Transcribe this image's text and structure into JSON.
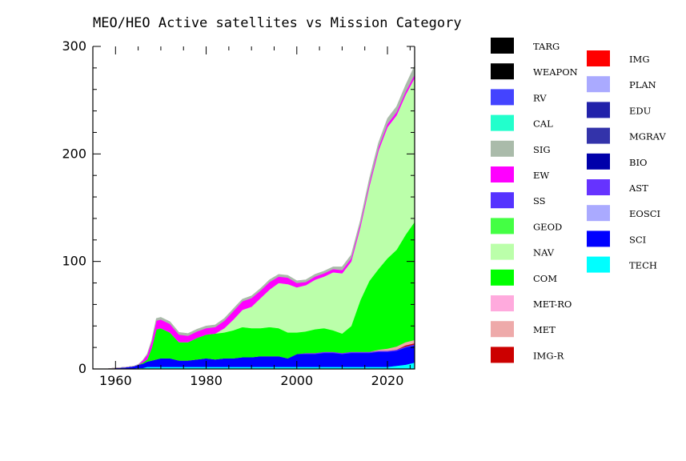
{
  "chart_data": {
    "type": "area",
    "stacked": true,
    "title": "MEO/HEO Active satellites vs Mission Category",
    "xlabel": "",
    "ylabel": "",
    "xlim": [
      1955,
      2026
    ],
    "ylim": [
      0,
      300
    ],
    "x_ticks": [
      1960,
      1980,
      2000,
      2020
    ],
    "y_ticks": [
      0,
      100,
      200,
      300
    ],
    "legend_placement": "right",
    "grid": false,
    "x": [
      1955,
      1958,
      1960,
      1962,
      1964,
      1965,
      1966,
      1967,
      1968,
      1969,
      1970,
      1972,
      1974,
      1976,
      1978,
      1980,
      1982,
      1984,
      1986,
      1988,
      1990,
      1992,
      1994,
      1996,
      1998,
      2000,
      2002,
      2004,
      2006,
      2008,
      2010,
      2012,
      2014,
      2016,
      2018,
      2020,
      2022,
      2024,
      2026
    ],
    "series": [
      {
        "name": "TECH",
        "color": "#00ffff",
        "values": [
          0,
          0,
          0,
          0.5,
          0.5,
          1,
          1,
          2,
          2,
          2,
          2,
          2,
          2,
          2,
          2,
          2,
          2,
          2,
          2,
          2,
          2,
          2,
          2,
          2,
          2,
          2,
          2,
          2,
          2,
          2,
          2,
          2,
          2,
          2,
          2,
          2,
          3,
          4,
          6
        ]
      },
      {
        "name": "SCI",
        "color": "#0000ff",
        "values": [
          0,
          0,
          1,
          1,
          2,
          3,
          4,
          5,
          6,
          7,
          8,
          8,
          6,
          6,
          7,
          8,
          7,
          8,
          8,
          9,
          9,
          10,
          10,
          10,
          8,
          12,
          12,
          12,
          13,
          13,
          12,
          13,
          13,
          13,
          14,
          14,
          14,
          16,
          16
        ]
      },
      {
        "name": "EOSCI",
        "color": "#aaaaff",
        "values": [
          0,
          0,
          0,
          0,
          0,
          0,
          0,
          0,
          0,
          0,
          0,
          0,
          0,
          0,
          0,
          0,
          0,
          0,
          0,
          0,
          0,
          0,
          0,
          0,
          0,
          0,
          0,
          0,
          0,
          0,
          0,
          0,
          0,
          0,
          0,
          0,
          0,
          0,
          0
        ]
      },
      {
        "name": "AST",
        "color": "#6633ff",
        "values": [
          0,
          0,
          0,
          0,
          0,
          0,
          0,
          0,
          0,
          0,
          0,
          0,
          0,
          0,
          0,
          0,
          0,
          0,
          0,
          0,
          0,
          0,
          0,
          0,
          0,
          0,
          1,
          1,
          1,
          1,
          1,
          1,
          1,
          1,
          1,
          1,
          1,
          1,
          1
        ]
      },
      {
        "name": "BIO",
        "color": "#0000aa",
        "values": [
          0,
          0,
          0,
          0,
          0,
          0,
          0,
          0,
          0,
          0,
          0,
          0,
          0,
          0,
          0,
          0,
          0,
          0,
          0,
          0,
          0,
          0,
          0,
          0,
          0,
          0,
          0,
          0,
          0,
          0,
          0,
          0,
          0,
          0,
          0,
          0,
          0,
          0,
          0
        ]
      },
      {
        "name": "MGRAV",
        "color": "#3333aa",
        "values": [
          0,
          0,
          0,
          0,
          0,
          0,
          0,
          0,
          0,
          0,
          0,
          0,
          0,
          0,
          0,
          0,
          0,
          0,
          0,
          0,
          0,
          0,
          0,
          0,
          0,
          0,
          0,
          0,
          0,
          0,
          0,
          0,
          0,
          0,
          0,
          0,
          0,
          0,
          0
        ]
      },
      {
        "name": "EDU",
        "color": "#2222aa",
        "values": [
          0,
          0,
          0,
          0,
          0,
          0,
          0,
          0,
          0,
          0,
          0,
          0,
          0,
          0,
          0,
          0,
          0,
          0,
          0,
          0,
          0,
          0,
          0,
          0,
          0,
          0,
          0,
          0,
          0,
          0,
          0,
          0,
          0,
          0,
          0,
          0,
          0,
          0,
          0
        ]
      },
      {
        "name": "PLAN",
        "color": "#aaaaff",
        "values": [
          0,
          0,
          0,
          0,
          0,
          0,
          0,
          0,
          0,
          0,
          0,
          0,
          0,
          0,
          0,
          0,
          0,
          0,
          0,
          0,
          0,
          0,
          0,
          0,
          0,
          0,
          0,
          0,
          0,
          0,
          0,
          0,
          0,
          0,
          0,
          0,
          0,
          0,
          0
        ]
      },
      {
        "name": "IMG",
        "color": "#ff0000",
        "values": [
          0,
          0,
          0,
          0,
          0,
          0,
          0,
          0,
          0,
          0,
          0,
          0,
          0,
          0,
          0,
          0,
          0,
          0,
          0,
          0,
          0,
          0,
          0,
          0,
          0,
          0,
          0,
          0,
          0,
          0,
          0,
          0,
          0,
          0,
          0,
          0,
          0,
          0,
          0
        ]
      },
      {
        "name": "IMG-R",
        "color": "#cc0000",
        "values": [
          0,
          0,
          0,
          0,
          0,
          0,
          0,
          0,
          0,
          0,
          0,
          0,
          0,
          0,
          0,
          0,
          0,
          0,
          0,
          0,
          0,
          0,
          0,
          0,
          0,
          0,
          0,
          0,
          0,
          0,
          0,
          0,
          0,
          0,
          0,
          0,
          0,
          1,
          1
        ]
      },
      {
        "name": "MET",
        "color": "#eeaaaa",
        "values": [
          0,
          0,
          0,
          0,
          0,
          0,
          0,
          0,
          0,
          0,
          0,
          0,
          0,
          0,
          0,
          0,
          0,
          0,
          0,
          0,
          0,
          0,
          0,
          0,
          0,
          0,
          0,
          0,
          0,
          0,
          0,
          0,
          0,
          0,
          1,
          2,
          3,
          3,
          3
        ]
      },
      {
        "name": "MET-RO",
        "color": "#ffaadd",
        "values": [
          0,
          0,
          0,
          0,
          0,
          0,
          0,
          0,
          0,
          0,
          0,
          0,
          0,
          0,
          0,
          0,
          0,
          0,
          0,
          0,
          0,
          0,
          0,
          0,
          0,
          0,
          0,
          0,
          0,
          0,
          0,
          0,
          0,
          0,
          0,
          0,
          0,
          0,
          0
        ]
      },
      {
        "name": "COM",
        "color": "#00ff00",
        "values": [
          0,
          0,
          0,
          0,
          0,
          0,
          1,
          2,
          12,
          28,
          28,
          24,
          17,
          17,
          20,
          22,
          24,
          24,
          26,
          28,
          27,
          26,
          27,
          26,
          24,
          20,
          20,
          22,
          22,
          20,
          18,
          24,
          48,
          66,
          75,
          84,
          90,
          100,
          110
        ]
      },
      {
        "name": "NAV",
        "color": "#bbffaa",
        "values": [
          0,
          0,
          0,
          0,
          0,
          0,
          0,
          0,
          0,
          0,
          0,
          0,
          0,
          0,
          0,
          0,
          0,
          4,
          10,
          16,
          20,
          28,
          35,
          42,
          45,
          42,
          43,
          46,
          48,
          54,
          56,
          60,
          68,
          88,
          110,
          122,
          125,
          130,
          134
        ]
      },
      {
        "name": "GEOD",
        "color": "#44ff44",
        "values": [
          0,
          0,
          0,
          0,
          0,
          0,
          0,
          0,
          0,
          0,
          0,
          0,
          0,
          0,
          0,
          0,
          0,
          0,
          0,
          0,
          0,
          0,
          0,
          0,
          0,
          0,
          0,
          0,
          0,
          0,
          0,
          0,
          0,
          0,
          0,
          0,
          0,
          0,
          0
        ]
      },
      {
        "name": "SS",
        "color": "#5533ff",
        "values": [
          0,
          0,
          0,
          0,
          0,
          0,
          0,
          0,
          0,
          0,
          0,
          0,
          0,
          0,
          0,
          0,
          0,
          0,
          0,
          0,
          0,
          0,
          0,
          0,
          0,
          0,
          0,
          0,
          0,
          0,
          0,
          0,
          0,
          0,
          0,
          0,
          0,
          0,
          0
        ]
      },
      {
        "name": "EW",
        "color": "#ff00ff",
        "values": [
          0,
          0,
          0,
          0,
          0,
          0,
          2,
          4,
          6,
          8,
          8,
          8,
          7,
          6,
          6,
          6,
          6,
          7,
          8,
          8,
          8,
          7,
          7,
          6,
          6,
          4,
          3,
          3,
          3,
          3,
          3,
          3,
          3,
          3,
          3,
          3,
          3,
          3,
          3
        ]
      },
      {
        "name": "SIG",
        "color": "#aabbaa",
        "values": [
          0,
          0,
          0,
          0,
          0,
          0,
          0,
          1,
          1,
          2,
          2,
          2,
          2,
          2,
          2,
          2,
          2,
          2,
          2,
          2,
          2,
          2,
          2,
          2,
          2,
          2,
          2,
          2,
          2,
          2,
          3,
          3,
          3,
          4,
          4,
          5,
          5,
          6,
          8
        ]
      },
      {
        "name": "CAL",
        "color": "#22ffcc",
        "values": [
          0,
          0,
          0,
          0,
          0,
          0,
          0,
          0,
          0,
          0,
          0,
          0,
          0,
          0,
          0,
          0,
          0,
          0,
          0,
          0,
          0,
          0,
          0,
          0,
          0,
          0,
          0,
          0,
          0,
          0,
          0,
          0,
          0,
          0,
          0,
          0,
          0,
          0,
          0
        ]
      },
      {
        "name": "RV",
        "color": "#4444ff",
        "values": [
          0,
          0,
          0,
          0,
          0,
          0,
          0,
          0,
          0,
          0,
          0,
          0,
          0,
          0,
          0,
          0,
          0,
          0,
          0,
          0,
          0,
          0,
          0,
          0,
          0,
          0,
          0,
          0,
          0,
          0,
          0,
          0,
          0,
          0,
          0,
          0,
          0,
          0,
          0
        ]
      },
      {
        "name": "WEAPON",
        "color": "#000000",
        "values": [
          0,
          0,
          0,
          0,
          0,
          0,
          0,
          0,
          0,
          0,
          0,
          0,
          0,
          0,
          0,
          0,
          0,
          0,
          0,
          0,
          0,
          0,
          0,
          0,
          0,
          0,
          0,
          0,
          0,
          0,
          0,
          0,
          0,
          0,
          0,
          0,
          0,
          0,
          0
        ]
      },
      {
        "name": "TARG",
        "color": "#000000",
        "values": [
          0,
          0,
          0,
          0,
          0,
          0,
          0,
          0,
          0,
          0,
          0,
          0,
          0,
          0,
          0,
          0,
          0,
          0,
          0,
          0,
          0,
          0,
          0,
          0,
          0,
          0,
          0,
          0,
          0,
          0,
          0,
          0,
          0,
          0,
          0,
          0,
          0,
          0,
          0
        ]
      }
    ],
    "legend_columns": [
      [
        "TARG",
        "WEAPON",
        "RV",
        "CAL",
        "SIG",
        "EW",
        "SS",
        "GEOD",
        "NAV",
        "COM",
        "MET-RO",
        "MET",
        "IMG-R"
      ],
      [
        "IMG",
        "PLAN",
        "EDU",
        "MGRAV",
        "BIO",
        "AST",
        "EOSCI",
        "SCI",
        "TECH"
      ]
    ]
  }
}
